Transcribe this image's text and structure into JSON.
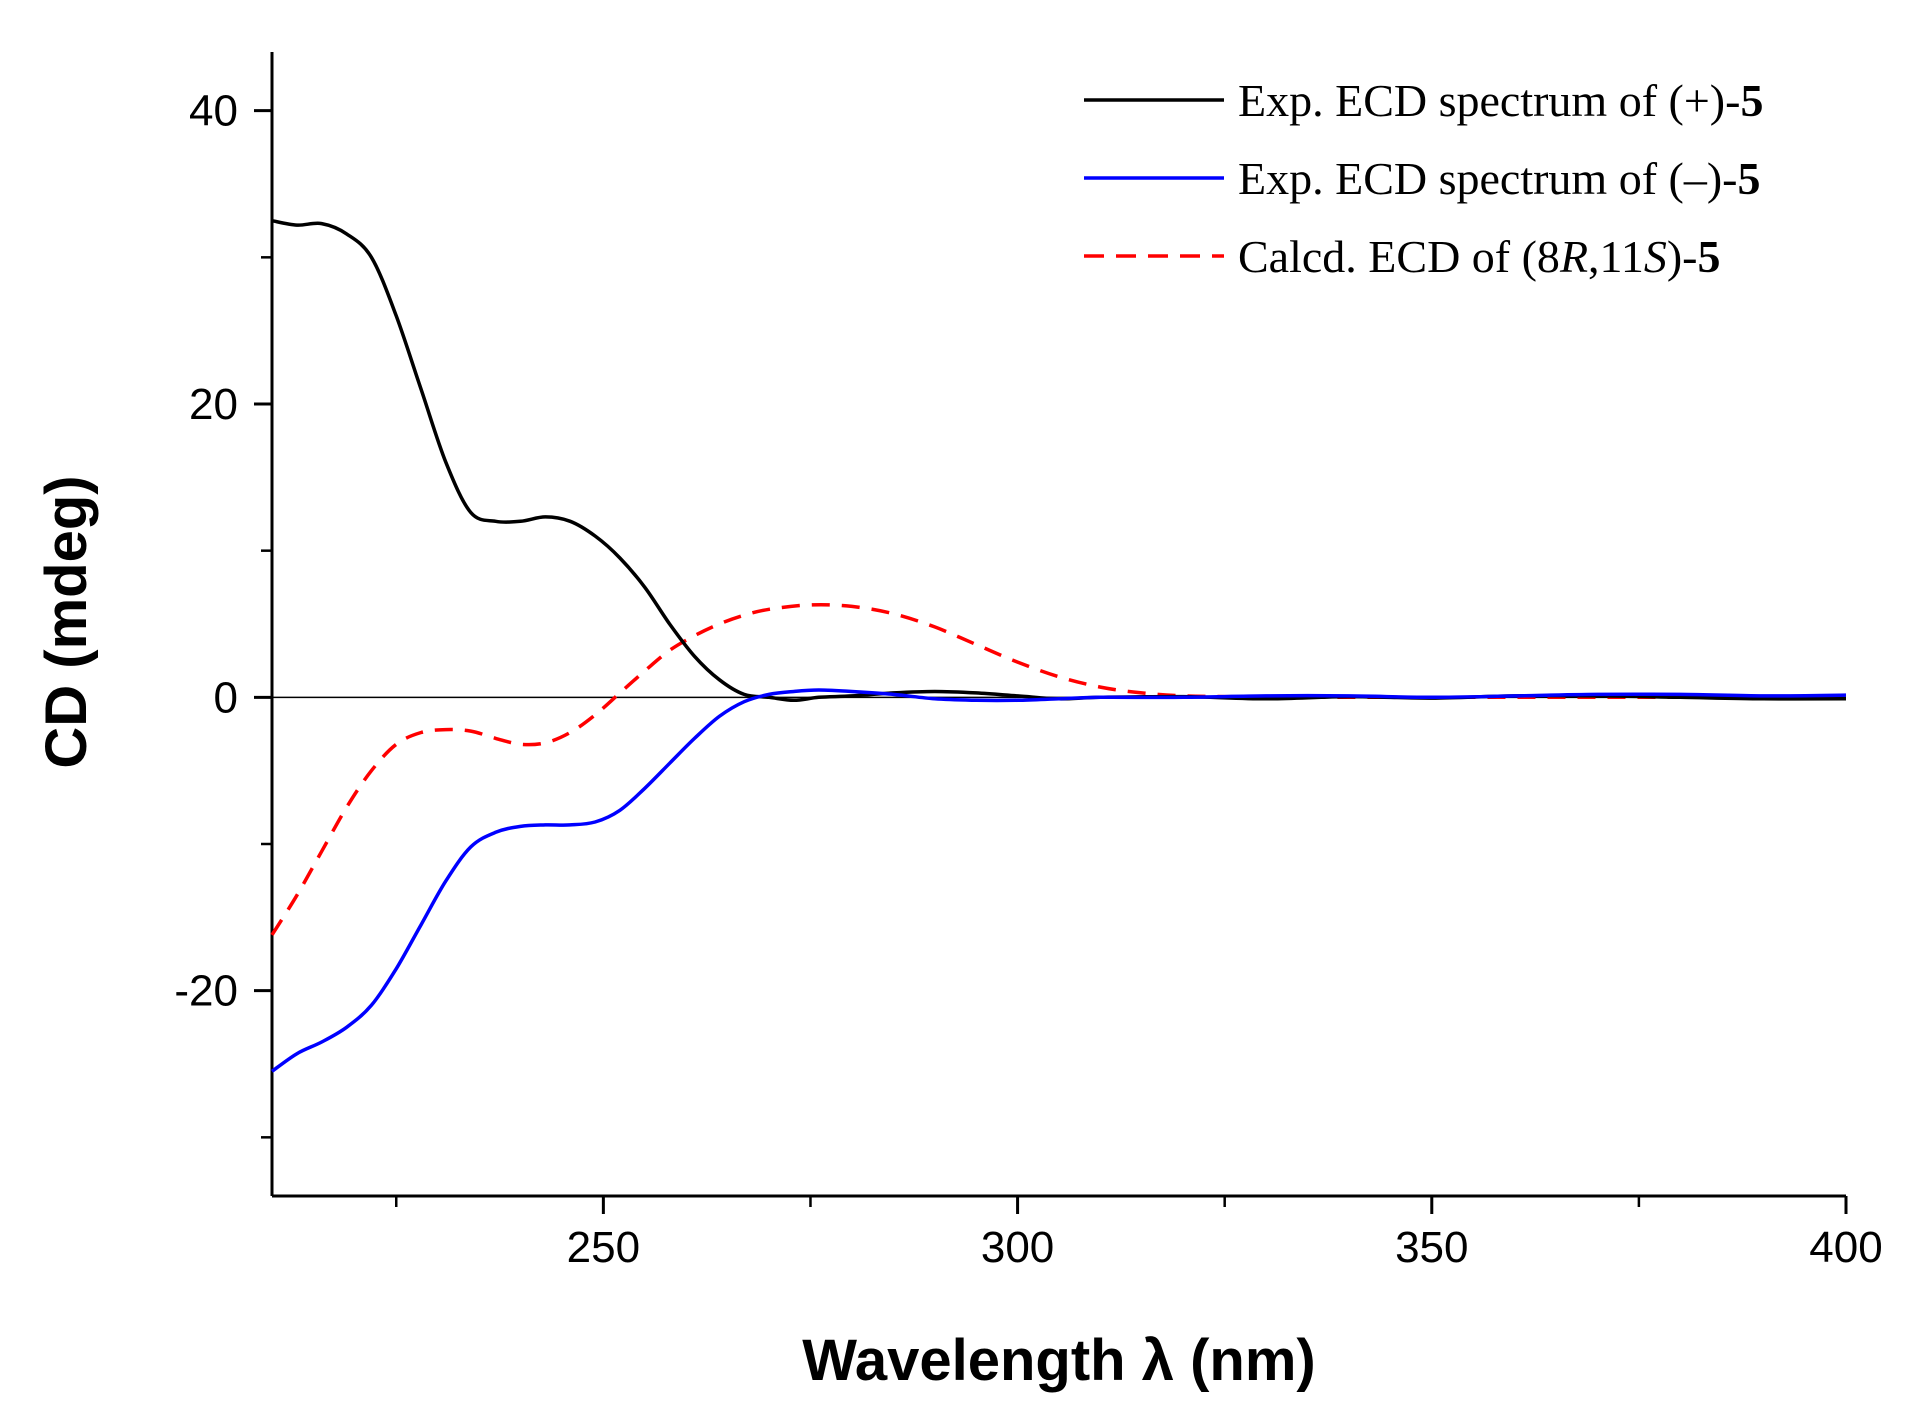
{
  "chart_data": {
    "type": "line",
    "title": "",
    "xlabel": "Wavelength λ (nm)",
    "ylabel": "CD (mdeg)",
    "xlim": [
      210,
      400
    ],
    "ylim": [
      -34,
      44
    ],
    "x_ticks": [
      {
        "value": 250,
        "label": "250"
      },
      {
        "value": 300,
        "label": "300"
      },
      {
        "value": 350,
        "label": "350"
      },
      {
        "value": 400,
        "label": "400"
      }
    ],
    "x_minor_ticks": [
      225,
      275,
      325,
      375
    ],
    "y_ticks": [
      {
        "value": 40,
        "label": "40"
      },
      {
        "value": 20,
        "label": "20"
      },
      {
        "value": 0,
        "label": "0"
      },
      {
        "value": -20,
        "label": "-20"
      }
    ],
    "y_minor_ticks": [
      30,
      10,
      -10,
      -30
    ],
    "zero_line": 0,
    "legend_position": "top-right",
    "series": [
      {
        "name": "Exp. ECD spectrum of (+)-5",
        "legend": {
          "prefix": "Exp. ECD spectrum of (+)-",
          "bold": "5"
        },
        "color": "#000000",
        "dash": "solid",
        "x": [
          210,
          213,
          216,
          219,
          222,
          225,
          228,
          231,
          234,
          237,
          240,
          243,
          246,
          249,
          252,
          255,
          258,
          261,
          264,
          267,
          270,
          273,
          276,
          280,
          285,
          290,
          295,
          300,
          305,
          310,
          320,
          330,
          340,
          350,
          360,
          370,
          380,
          390,
          400
        ],
        "y": [
          32.5,
          32.2,
          32.3,
          31.6,
          30,
          26,
          21,
          16,
          12.6,
          12,
          12,
          12.3,
          12,
          11,
          9.5,
          7.5,
          5,
          2.8,
          1.2,
          0.2,
          0,
          -0.2,
          0,
          0.1,
          0.3,
          0.4,
          0.3,
          0.1,
          -0.1,
          0,
          0.05,
          -0.1,
          0.05,
          -0.05,
          0.1,
          0.1,
          0,
          -0.1,
          -0.1
        ]
      },
      {
        "name": "Exp. ECD spectrum of (–)-5",
        "legend": {
          "prefix": "Exp. ECD spectrum of (–)-",
          "bold": "5"
        },
        "color": "#0000ff",
        "dash": "solid",
        "x": [
          210,
          213,
          216,
          219,
          222,
          225,
          228,
          231,
          234,
          237,
          240,
          243,
          246,
          249,
          252,
          255,
          258,
          261,
          264,
          267,
          270,
          273,
          276,
          280,
          285,
          290,
          295,
          300,
          305,
          310,
          320,
          330,
          340,
          350,
          360,
          370,
          380,
          390,
          400
        ],
        "y": [
          -25.5,
          -24.3,
          -23.5,
          -22.5,
          -21,
          -18.5,
          -15.5,
          -12.5,
          -10.2,
          -9.2,
          -8.8,
          -8.7,
          -8.7,
          -8.5,
          -7.7,
          -6.2,
          -4.5,
          -2.8,
          -1.3,
          -0.3,
          0.2,
          0.4,
          0.5,
          0.4,
          0.2,
          -0.1,
          -0.2,
          -0.2,
          -0.1,
          0,
          0,
          0.1,
          0.1,
          0,
          0.1,
          0.2,
          0.2,
          0.1,
          0.15
        ]
      },
      {
        "name": "Calcd. ECD of (8R,11S)-5",
        "legend": {
          "prefix": "Calcd. ECD of (8",
          "it1": "R",
          "mid": ",11",
          "it2": "S",
          "suffix": ")-",
          "bold": "5"
        },
        "color": "#ff0000",
        "dash": "dashed",
        "x": [
          210,
          213,
          216,
          219,
          222,
          225,
          228,
          231,
          234,
          237,
          240,
          243,
          246,
          249,
          252,
          255,
          258,
          261,
          264,
          267,
          270,
          275,
          280,
          285,
          290,
          295,
          300,
          305,
          310,
          315,
          320,
          325,
          330,
          335,
          340,
          350,
          360,
          370,
          380,
          390,
          400
        ],
        "y": [
          -16.2,
          -13.5,
          -10.5,
          -7.5,
          -5,
          -3.2,
          -2.4,
          -2.2,
          -2.3,
          -2.8,
          -3.2,
          -3.1,
          -2.4,
          -1.2,
          0.3,
          1.8,
          3.2,
          4.2,
          5,
          5.6,
          6,
          6.3,
          6.2,
          5.7,
          4.8,
          3.6,
          2.4,
          1.4,
          0.7,
          0.3,
          0.1,
          0.05,
          0,
          0,
          0,
          0,
          0,
          0,
          0,
          0,
          0
        ]
      }
    ]
  }
}
